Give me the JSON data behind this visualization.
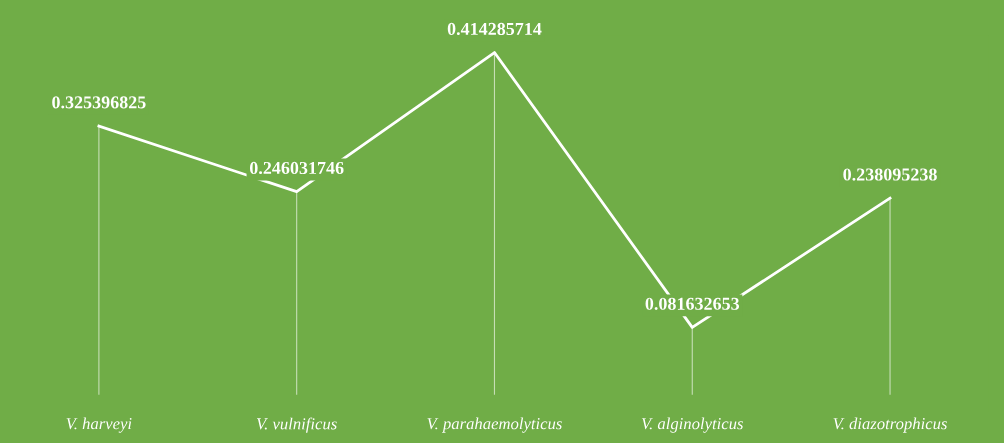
{
  "chart_data": {
    "type": "line",
    "categories": [
      "V. harveyi",
      "V. vulnificus",
      "V. parahaemolyticus",
      "V. alginolyticus",
      "V. diazotrophicus"
    ],
    "series": [
      {
        "color": "#ffffff",
        "values": [
          0.325396825,
          0.246031746,
          0.414285714,
          0.081632653,
          0.238095238
        ]
      }
    ],
    "data_labels": true,
    "marker": "none",
    "line_style": "solid",
    "grid": "x",
    "legend": false
  }
}
